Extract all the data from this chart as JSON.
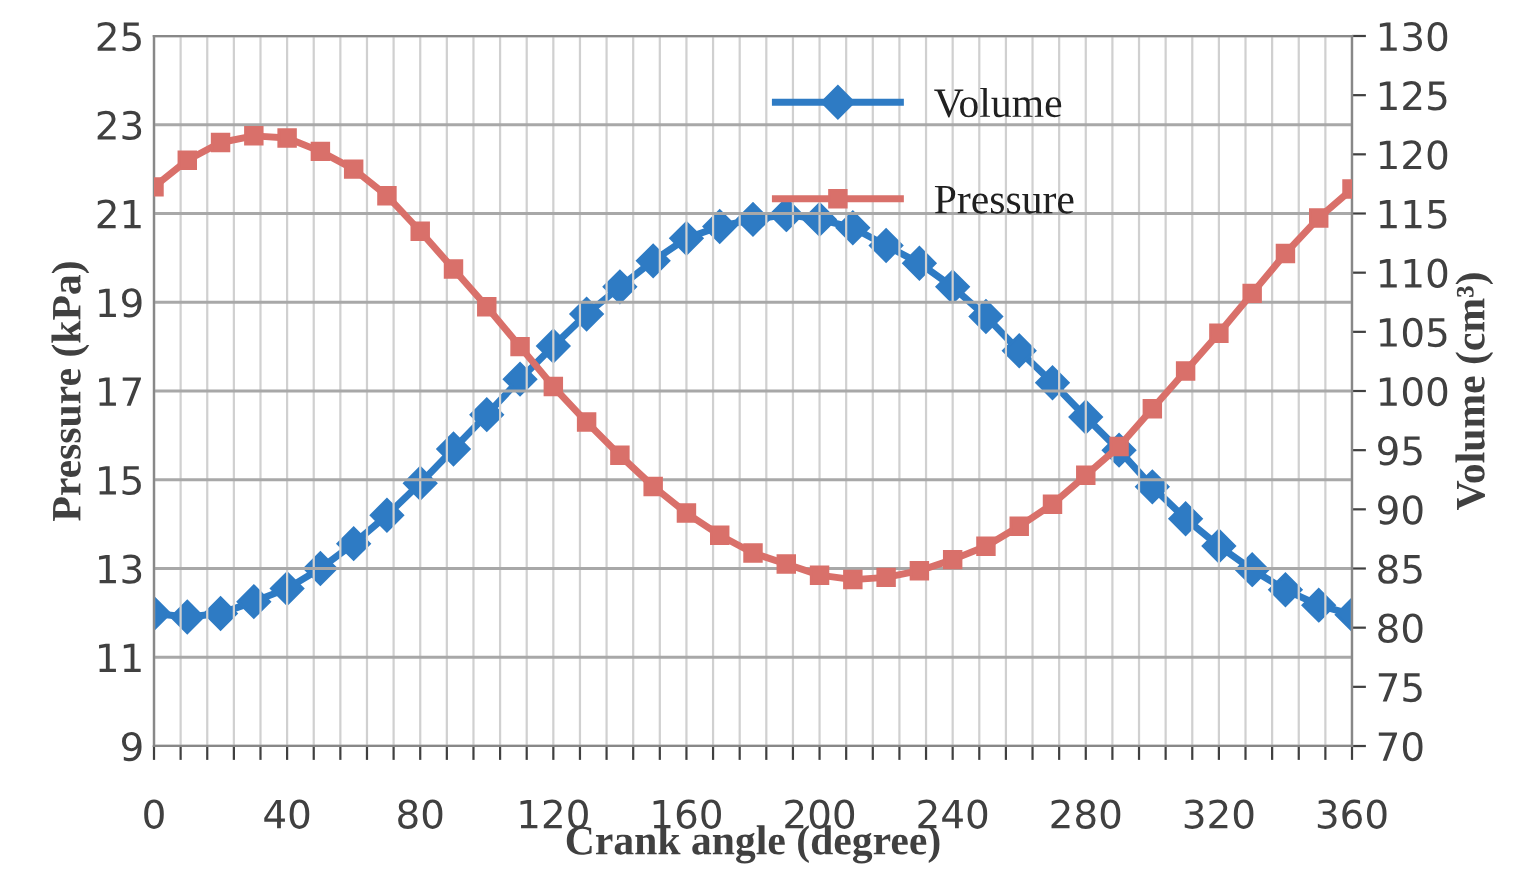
{
  "chart_data": {
    "type": "line",
    "xlabel": "Crank angle (degree)",
    "ylabel": "Pressure (kPa)",
    "y2label": "Volume (cm³)",
    "x": [
      0,
      10,
      20,
      30,
      40,
      50,
      60,
      70,
      80,
      90,
      100,
      110,
      120,
      130,
      140,
      150,
      160,
      170,
      180,
      190,
      200,
      210,
      220,
      230,
      240,
      250,
      260,
      270,
      280,
      290,
      300,
      310,
      320,
      330,
      340,
      350,
      360
    ],
    "series": [
      {
        "name": "Volume",
        "color": "#2e7bc4",
        "axis": "y2",
        "marker": "diamond",
        "values": [
          81.2,
          80.9,
          81.2,
          82.2,
          83.3,
          85.0,
          87.1,
          89.5,
          92.2,
          95.1,
          98.0,
          101.0,
          103.8,
          106.5,
          108.8,
          111.0,
          112.9,
          113.9,
          114.5,
          114.9,
          114.5,
          113.8,
          112.3,
          110.8,
          108.8,
          106.3,
          103.4,
          100.7,
          97.8,
          95.0,
          91.9,
          89.2,
          86.9,
          84.9,
          83.2,
          81.9,
          81.1
        ]
      },
      {
        "name": "Pressure",
        "color": "#d9706a",
        "marker": "square",
        "values": [
          21.6,
          22.2,
          22.6,
          22.75,
          22.7,
          22.4,
          22.0,
          21.4,
          20.6,
          19.75,
          18.9,
          18.0,
          17.1,
          16.3,
          15.55,
          14.85,
          14.25,
          13.75,
          13.35,
          13.1,
          12.85,
          12.75,
          12.8,
          12.95,
          13.2,
          13.5,
          13.95,
          14.45,
          15.1,
          15.75,
          16.6,
          17.45,
          18.3,
          19.2,
          20.1,
          20.9,
          21.55
        ]
      }
    ],
    "xlim": [
      0,
      360
    ],
    "xticks": [
      0,
      {
        "value": 8,
        "label": null
      },
      {
        "value": 16,
        "label": null
      },
      {
        "value": 24,
        "label": null
      },
      {
        "value": 32,
        "label": null
      },
      40,
      {
        "value": 48,
        "label": null
      },
      {
        "value": 56,
        "label": null
      },
      {
        "value": 64,
        "label": null
      },
      {
        "value": 72,
        "label": null
      },
      80,
      {
        "value": 88,
        "label": null
      },
      {
        "value": 96,
        "label": null
      },
      {
        "value": 104,
        "label": null
      },
      {
        "value": 112,
        "label": null
      },
      120,
      {
        "value": 128,
        "label": null
      },
      {
        "value": 136,
        "label": null
      },
      {
        "value": 144,
        "label": null
      },
      {
        "value": 152,
        "label": null
      },
      160,
      {
        "value": 168,
        "label": null
      },
      {
        "value": 176,
        "label": null
      },
      {
        "value": 184,
        "label": null
      },
      {
        "value": 192,
        "label": null
      },
      200,
      {
        "value": 208,
        "label": null
      },
      {
        "value": 216,
        "label": null
      },
      {
        "value": 224,
        "label": null
      },
      {
        "value": 232,
        "label": null
      },
      240,
      {
        "value": 248,
        "label": null
      },
      {
        "value": 256,
        "label": null
      },
      {
        "value": 264,
        "label": null
      },
      {
        "value": 272,
        "label": null
      },
      280,
      {
        "value": 288,
        "label": null
      },
      {
        "value": 296,
        "label": null
      },
      {
        "value": 304,
        "label": null
      },
      {
        "value": 312,
        "label": null
      },
      320,
      {
        "value": 328,
        "label": null
      },
      {
        "value": 336,
        "label": null
      },
      {
        "value": 344,
        "label": null
      },
      {
        "value": 352,
        "label": null
      },
      360
    ],
    "ylim": [
      9,
      25
    ],
    "yticks": [
      9,
      11,
      13,
      15,
      17,
      19,
      21,
      23,
      25
    ],
    "y2lim": [
      70,
      130
    ],
    "y2ticks": [
      70,
      75,
      80,
      85,
      90,
      95,
      100,
      105,
      110,
      115,
      120,
      125,
      130
    ],
    "grid": true,
    "legend": "top right",
    "line_style": "solid"
  }
}
